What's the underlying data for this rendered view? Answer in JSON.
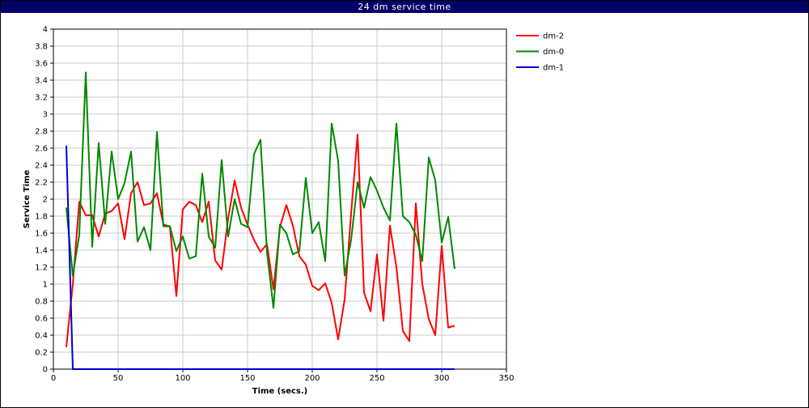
{
  "chart_data": {
    "type": "line",
    "title": "24 dm service time",
    "xlabel": "Time (secs.)",
    "ylabel": "Service Time",
    "xlim": [
      0,
      350
    ],
    "ylim": [
      0,
      4
    ],
    "x_ticks": [
      "0",
      "50",
      "100",
      "150",
      "200",
      "250",
      "300",
      "350"
    ],
    "y_ticks": [
      "0",
      "0.2",
      "0.4",
      "0.6",
      "0.8",
      "1",
      "1.2",
      "1.4",
      "1.6",
      "1.8",
      "2",
      "2.2",
      "2.4",
      "2.6",
      "2.8",
      "3",
      "3.2",
      "3.4",
      "3.6",
      "3.8",
      "4"
    ],
    "grid": true,
    "legend_position": "right",
    "series": [
      {
        "name": "dm-2",
        "color": "#ff0000",
        "points": [
          [
            10,
            0.26
          ],
          [
            15,
            1.0
          ],
          [
            20,
            1.97
          ],
          [
            25,
            1.81
          ],
          [
            30,
            1.81
          ],
          [
            35,
            1.56
          ],
          [
            40,
            1.83
          ],
          [
            45,
            1.86
          ],
          [
            50,
            1.95
          ],
          [
            55,
            1.53
          ],
          [
            60,
            2.07
          ],
          [
            65,
            2.2
          ],
          [
            70,
            1.93
          ],
          [
            75,
            1.95
          ],
          [
            80,
            2.07
          ],
          [
            85,
            1.7
          ],
          [
            90,
            1.68
          ],
          [
            95,
            0.86
          ],
          [
            100,
            1.88
          ],
          [
            105,
            1.97
          ],
          [
            110,
            1.93
          ],
          [
            115,
            1.73
          ],
          [
            120,
            1.97
          ],
          [
            125,
            1.28
          ],
          [
            130,
            1.17
          ],
          [
            135,
            1.77
          ],
          [
            140,
            2.22
          ],
          [
            145,
            1.9
          ],
          [
            150,
            1.7
          ],
          [
            155,
            1.52
          ],
          [
            160,
            1.38
          ],
          [
            165,
            1.47
          ],
          [
            170,
            0.94
          ],
          [
            175,
            1.67
          ],
          [
            180,
            1.93
          ],
          [
            185,
            1.69
          ],
          [
            190,
            1.33
          ],
          [
            195,
            1.23
          ],
          [
            200,
            0.98
          ],
          [
            205,
            0.93
          ],
          [
            210,
            1.01
          ],
          [
            215,
            0.78
          ],
          [
            220,
            0.35
          ],
          [
            225,
            0.82
          ],
          [
            230,
            1.83
          ],
          [
            235,
            2.76
          ],
          [
            240,
            0.9
          ],
          [
            245,
            0.68
          ],
          [
            250,
            1.35
          ],
          [
            255,
            0.57
          ],
          [
            260,
            1.69
          ],
          [
            265,
            1.2
          ],
          [
            270,
            0.45
          ],
          [
            275,
            0.33
          ],
          [
            280,
            1.95
          ],
          [
            285,
            1.0
          ],
          [
            290,
            0.59
          ],
          [
            295,
            0.4
          ],
          [
            300,
            1.45
          ],
          [
            305,
            0.49
          ],
          [
            310,
            0.51
          ]
        ]
      },
      {
        "name": "dm-0",
        "color": "#008800",
        "points": [
          [
            10,
            1.9
          ],
          [
            15,
            1.1
          ],
          [
            20,
            1.58
          ],
          [
            25,
            3.49
          ],
          [
            30,
            1.44
          ],
          [
            35,
            2.66
          ],
          [
            40,
            1.71
          ],
          [
            45,
            2.56
          ],
          [
            50,
            2.0
          ],
          [
            55,
            2.19
          ],
          [
            60,
            2.56
          ],
          [
            65,
            1.5
          ],
          [
            70,
            1.67
          ],
          [
            75,
            1.4
          ],
          [
            80,
            2.79
          ],
          [
            85,
            1.68
          ],
          [
            90,
            1.68
          ],
          [
            95,
            1.39
          ],
          [
            100,
            1.56
          ],
          [
            105,
            1.3
          ],
          [
            110,
            1.33
          ],
          [
            115,
            2.3
          ],
          [
            120,
            1.56
          ],
          [
            125,
            1.43
          ],
          [
            130,
            2.46
          ],
          [
            135,
            1.56
          ],
          [
            140,
            2.0
          ],
          [
            145,
            1.71
          ],
          [
            150,
            1.67
          ],
          [
            155,
            2.53
          ],
          [
            160,
            2.7
          ],
          [
            165,
            1.38
          ],
          [
            170,
            0.72
          ],
          [
            175,
            1.7
          ],
          [
            180,
            1.6
          ],
          [
            185,
            1.35
          ],
          [
            190,
            1.39
          ],
          [
            195,
            2.25
          ],
          [
            200,
            1.6
          ],
          [
            205,
            1.73
          ],
          [
            210,
            1.27
          ],
          [
            215,
            2.89
          ],
          [
            220,
            2.45
          ],
          [
            225,
            1.1
          ],
          [
            230,
            1.52
          ],
          [
            235,
            2.2
          ],
          [
            240,
            1.9
          ],
          [
            245,
            2.26
          ],
          [
            250,
            2.1
          ],
          [
            255,
            1.9
          ],
          [
            260,
            1.75
          ],
          [
            265,
            2.89
          ],
          [
            270,
            1.8
          ],
          [
            275,
            1.73
          ],
          [
            280,
            1.58
          ],
          [
            285,
            1.27
          ],
          [
            290,
            2.49
          ],
          [
            295,
            2.22
          ],
          [
            300,
            1.49
          ],
          [
            305,
            1.79
          ],
          [
            310,
            1.18
          ]
        ]
      },
      {
        "name": "dm-1",
        "color": "#0000cc",
        "points": [
          [
            10,
            2.63
          ],
          [
            15,
            0.0
          ],
          [
            20,
            0.0
          ],
          [
            50,
            0.0
          ],
          [
            100,
            0.0
          ],
          [
            150,
            0.0
          ],
          [
            200,
            0.0
          ],
          [
            250,
            0.0
          ],
          [
            300,
            0.0
          ],
          [
            310,
            0.0
          ]
        ]
      }
    ]
  }
}
